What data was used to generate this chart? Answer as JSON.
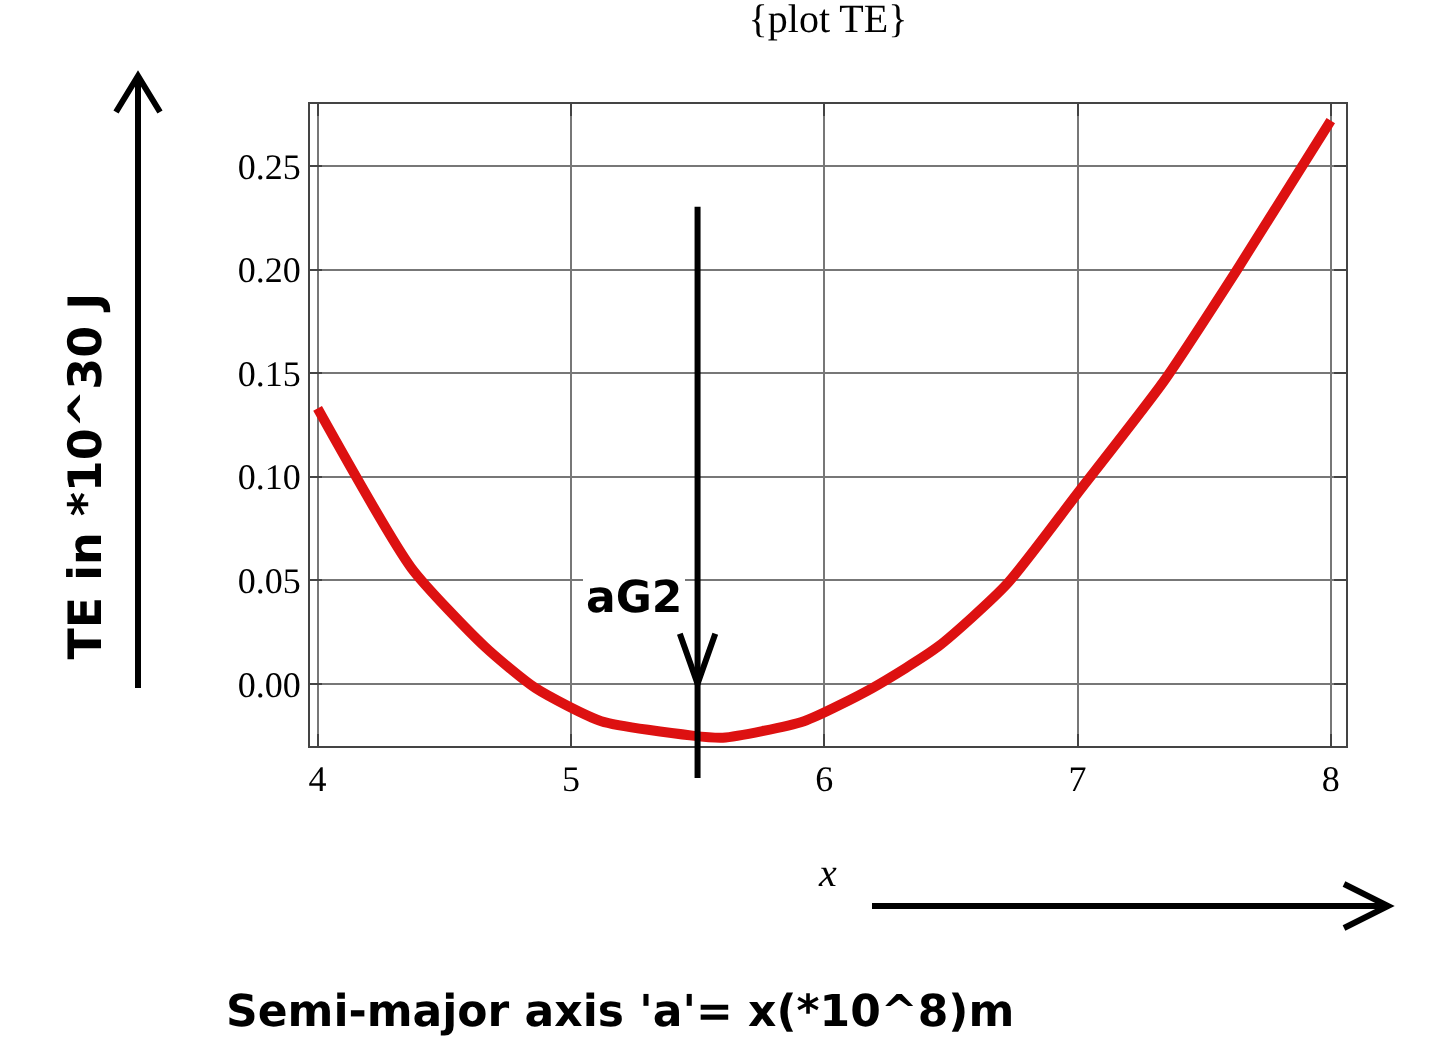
{
  "chart_data": {
    "type": "line",
    "title": "{plot TE}",
    "xlabel": "x",
    "ylabel": "TE in *10^30 J",
    "annotations": [
      "Semi-major axis 'a'= x(*10^8)m"
    ],
    "ref_lines": [
      {
        "axis": "x",
        "value": 5.5,
        "label": "aG2"
      }
    ],
    "x": [
      4,
      4.37,
      4.66,
      4.86,
      5.12,
      5.48,
      5.6,
      5.92,
      6.19,
      6.45,
      6.72,
      7,
      7.34,
      7.63,
      8
    ],
    "series": [
      {
        "color": "#dd1111",
        "values": [
          0.133,
          0.056,
          0.018,
          -0.002,
          -0.018,
          -0.025,
          -0.026,
          -0.018,
          -0.002,
          0.018,
          0.048,
          0.092,
          0.146,
          0.2,
          0.272
        ]
      }
    ],
    "xlim": [
      3.97,
      8.06
    ],
    "xticks": [
      4,
      5,
      6,
      7,
      8
    ],
    "ylim": [
      -0.03,
      0.28
    ],
    "yticks": [
      {
        "value": 0,
        "label": "0.00"
      },
      0.05,
      {
        "value": 0.1,
        "label": "0.10"
      },
      0.15,
      {
        "value": 0.2,
        "label": "0.20"
      },
      0.25
    ],
    "grid": true,
    "marker": "none",
    "line_style": "solid"
  }
}
